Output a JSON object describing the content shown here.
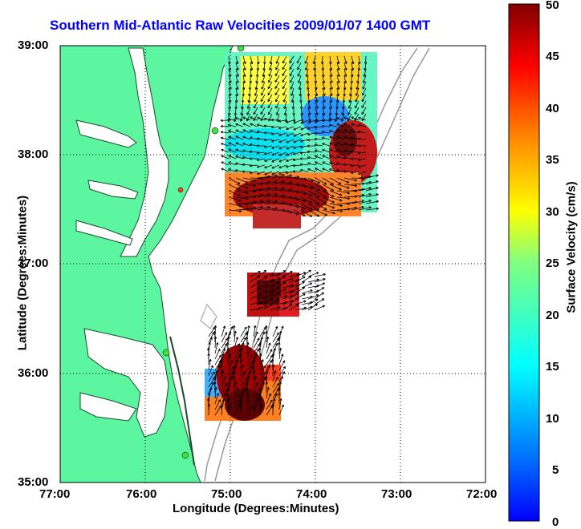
{
  "map": {
    "title": "Southern Mid-Atlantic Raw Velocities 2009/01/07 1400 GMT",
    "xlabel": "Longitude (Degrees:Minutes)",
    "ylabel": "Latitude (Degrees:Minutes)",
    "x_ticks": [
      "77:00",
      "76:00",
      "75:00",
      "74:00",
      "73:00",
      "72:00"
    ],
    "y_ticks": [
      "39:00",
      "38:00",
      "37:00",
      "36:00",
      "35:00"
    ],
    "lon_range": [
      -77,
      -72
    ],
    "lat_range": [
      35,
      39
    ]
  },
  "colorbar": {
    "label": "Surface Velocity (cm/s)",
    "ticks": [
      "50",
      "45",
      "40",
      "35",
      "30",
      "25",
      "20",
      "15",
      "10",
      "5",
      "0"
    ],
    "range": [
      0,
      50
    ]
  },
  "colors": {
    "land": "#5cf5a0",
    "ocean": "#ffffff",
    "title": "#0000ff",
    "bathymetry": "#999999"
  }
}
